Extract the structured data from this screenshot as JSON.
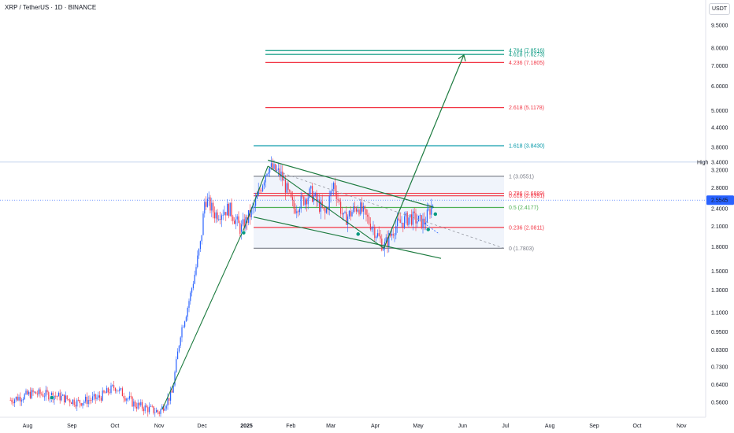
{
  "header": {
    "title": "XRP / TetherUS · 1D · BINANCE",
    "unit": "USDT"
  },
  "chart_data": {
    "type": "candlestick",
    "symbol": "XRP / TetherUS",
    "interval": "1D",
    "exchange": "BINANCE",
    "y_scale": "log",
    "ylim": [
      0.52,
      10.2
    ],
    "y_ticks": [
      "9.5000",
      "8.0000",
      "7.0000",
      "6.0000",
      "5.0000",
      "4.4000",
      "3.8000",
      "3.4000",
      "3.2000",
      "2.8000",
      "2.4000",
      "2.1000",
      "1.8000",
      "1.5000",
      "1.3000",
      "1.1000",
      "0.9500",
      "0.8300",
      "0.7300",
      "0.6400",
      "0.5600"
    ],
    "x_ticks": [
      "Aug",
      "Sep",
      "Oct",
      "Nov",
      "Dec",
      "2025",
      "Feb",
      "Mar",
      "Apr",
      "May",
      "Jun",
      "Jul",
      "Aug",
      "Sep",
      "Oct",
      "Nov"
    ],
    "current_price": {
      "label": "2.5545",
      "value": 2.5545,
      "color": "#2962ff"
    },
    "high_marker": {
      "label": "High",
      "value": 3.4
    },
    "price_path": [
      {
        "date": "2024-07-20",
        "value": 0.57
      },
      {
        "date": "2024-08-05",
        "value": 0.6
      },
      {
        "date": "2024-08-20",
        "value": 0.59
      },
      {
        "date": "2024-09-05",
        "value": 0.56
      },
      {
        "date": "2024-09-20",
        "value": 0.58
      },
      {
        "date": "2024-10-01",
        "value": 0.63
      },
      {
        "date": "2024-10-15",
        "value": 0.55
      },
      {
        "date": "2024-11-01",
        "value": 0.52
      },
      {
        "date": "2024-11-10",
        "value": 0.6
      },
      {
        "date": "2024-11-16",
        "value": 0.95
      },
      {
        "date": "2024-11-20",
        "value": 1.1
      },
      {
        "date": "2024-11-25",
        "value": 1.4
      },
      {
        "date": "2024-11-30",
        "value": 1.85
      },
      {
        "date": "2024-12-03",
        "value": 2.6
      },
      {
        "date": "2024-12-10",
        "value": 2.3
      },
      {
        "date": "2024-12-20",
        "value": 2.4
      },
      {
        "date": "2024-12-28",
        "value": 2.05
      },
      {
        "date": "2025-01-06",
        "value": 2.4
      },
      {
        "date": "2025-01-16",
        "value": 3.3
      },
      {
        "date": "2025-01-25",
        "value": 3.1
      },
      {
        "date": "2025-02-03",
        "value": 2.4
      },
      {
        "date": "2025-02-15",
        "value": 2.7
      },
      {
        "date": "2025-02-25",
        "value": 2.3
      },
      {
        "date": "2025-03-03",
        "value": 2.9
      },
      {
        "date": "2025-03-10",
        "value": 2.2
      },
      {
        "date": "2025-03-20",
        "value": 2.45
      },
      {
        "date": "2025-03-30",
        "value": 2.1
      },
      {
        "date": "2025-04-07",
        "value": 1.8
      },
      {
        "date": "2025-04-15",
        "value": 2.1
      },
      {
        "date": "2025-04-25",
        "value": 2.25
      },
      {
        "date": "2025-05-05",
        "value": 2.15
      },
      {
        "date": "2025-05-12",
        "value": 2.55
      }
    ],
    "fib_levels": [
      {
        "label": "4.764 (7.8516)",
        "value": 7.8516,
        "color": "#089981"
      },
      {
        "label": "4.618 (7.6273)",
        "value": 7.6273,
        "color": "#089981"
      },
      {
        "label": "4.236 (7.1805)",
        "value": 7.1805,
        "color": "#f23645"
      },
      {
        "label": "2.618 (5.1178)",
        "value": 5.1178,
        "color": "#f23645"
      },
      {
        "label": "1.618 (3.8430)",
        "value": 3.843,
        "color": "#0097a7"
      },
      {
        "label": "1 (3.0551)",
        "value": 3.0551,
        "color": "#787b86"
      },
      {
        "label": "0.786 (2.6889)",
        "value": 2.6889,
        "color": "#f23645"
      },
      {
        "label": "0.618 (2.6391)",
        "value": 2.6391,
        "color": "#f23645"
      },
      {
        "label": "0.5 (2.4177)",
        "value": 2.4177,
        "color": "#4caf50"
      },
      {
        "label": "0.236 (2.0811)",
        "value": 2.0811,
        "color": "#f23645"
      },
      {
        "label": "0 (1.7803)",
        "value": 1.7803,
        "color": "#787b86"
      }
    ],
    "colors": {
      "up": "#2962ff",
      "down": "#f23645",
      "trend": "#1b7a3e",
      "fib_box": "#e3ebf8"
    }
  }
}
